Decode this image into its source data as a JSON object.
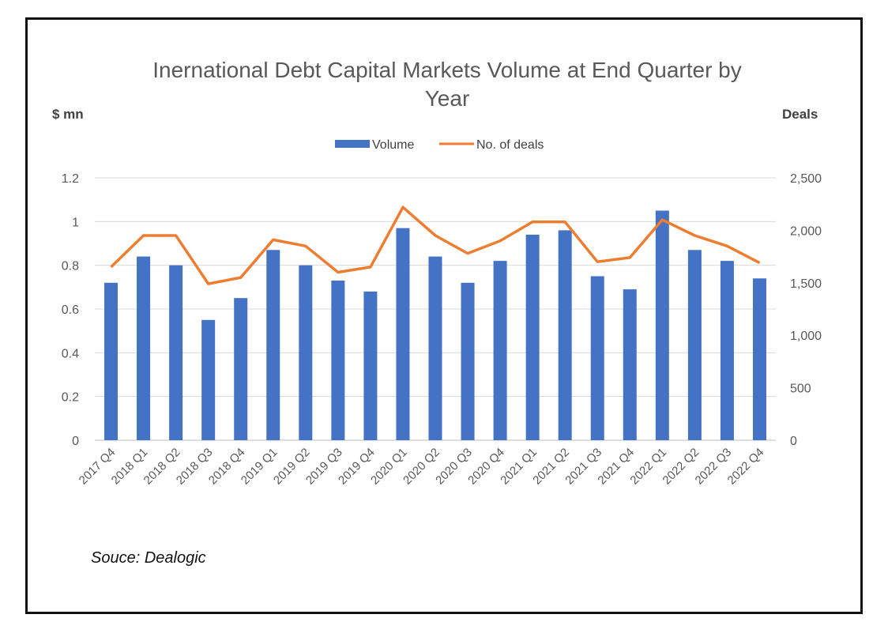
{
  "chart_data": {
    "type": "bar",
    "title_line1": "Inernational Debt Capital Markets Volume at End Quarter by",
    "title_line2": "Year",
    "ylabel": "$ mn",
    "y2label": "Deals",
    "source": "Souce: Dealogic",
    "categories": [
      "2017 Q4",
      "2018 Q1",
      "2018 Q2",
      "2018 Q3",
      "2018 Q4",
      "2019 Q1",
      "2019 Q2",
      "2019 Q3",
      "2019 Q4",
      "2020 Q1",
      "2020 Q2",
      "2020 Q3",
      "2020 Q4",
      "2021 Q1",
      "2021 Q2",
      "2021 Q3",
      "2021 Q4",
      "2022 Q1",
      "2022 Q2",
      "2022 Q3",
      "2022 Q4"
    ],
    "ylim": [
      0,
      1.2
    ],
    "y2lim": [
      0,
      2500
    ],
    "yticks": [
      "0",
      "0.2",
      "0.4",
      "0.6",
      "0.8",
      "1",
      "1.2"
    ],
    "y2ticks": [
      "0",
      "500",
      "1,000",
      "1,500",
      "2,000",
      "2,500"
    ],
    "grid": true,
    "legend_position": "top",
    "series": [
      {
        "name": "Volume",
        "type": "bar",
        "axis": "left",
        "color": "#4472C4",
        "values": [
          0.72,
          0.84,
          0.8,
          0.55,
          0.65,
          0.87,
          0.8,
          0.73,
          0.68,
          0.97,
          0.84,
          0.72,
          0.82,
          0.94,
          0.96,
          0.75,
          0.69,
          1.05,
          0.87,
          0.82,
          0.74
        ]
      },
      {
        "name": "No. of deals",
        "type": "line",
        "axis": "right",
        "color": "#ED7D31",
        "values": [
          1650,
          1950,
          1950,
          1490,
          1550,
          1910,
          1850,
          1600,
          1650,
          2220,
          1950,
          1780,
          1900,
          2080,
          2080,
          1700,
          1740,
          2100,
          1950,
          1850,
          1690
        ]
      }
    ]
  }
}
